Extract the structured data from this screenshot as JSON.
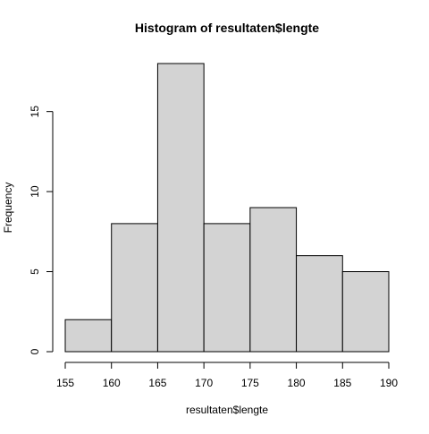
{
  "chart_data": {
    "type": "bar",
    "title": "Histogram of resultaten$lengte",
    "xlabel": "resultaten$lengte",
    "ylabel": "Frequency",
    "bins": [
      {
        "from": 155,
        "to": 160,
        "count": 2
      },
      {
        "from": 160,
        "to": 165,
        "count": 8
      },
      {
        "from": 165,
        "to": 170,
        "count": 18
      },
      {
        "from": 170,
        "to": 175,
        "count": 8
      },
      {
        "from": 175,
        "to": 180,
        "count": 9
      },
      {
        "from": 180,
        "to": 185,
        "count": 6
      },
      {
        "from": 185,
        "to": 190,
        "count": 5
      }
    ],
    "xlim": [
      155,
      190
    ],
    "ylim": [
      0,
      18
    ],
    "x_ticks": [
      155,
      160,
      165,
      170,
      175,
      180,
      185,
      190
    ],
    "y_ticks": [
      0,
      5,
      10,
      15
    ],
    "bar_fill": "#d3d3d3",
    "bar_stroke": "#000000",
    "grid": false
  }
}
